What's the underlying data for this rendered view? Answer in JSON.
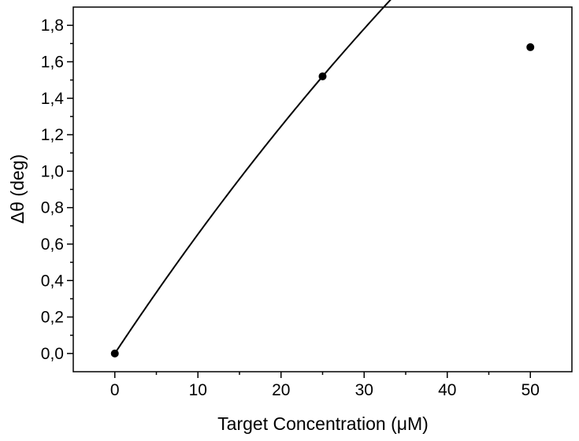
{
  "chart_data": {
    "type": "scatter",
    "title": "",
    "xlabel": "Target Concentration (μM)",
    "ylabel": "Δθ (deg)",
    "xlim": [
      -5,
      55
    ],
    "ylim": [
      -0.1,
      1.9
    ],
    "x_ticks": [
      0,
      10,
      20,
      30,
      40,
      50
    ],
    "x_tick_labels": [
      "0",
      "10",
      "20",
      "30",
      "40",
      "50"
    ],
    "y_ticks": [
      0.0,
      0.2,
      0.4,
      0.6,
      0.8,
      1.0,
      1.2,
      1.4,
      1.6,
      1.8
    ],
    "y_tick_labels": [
      "0,0",
      "0,2",
      "0,4",
      "0,6",
      "0,8",
      "1,0",
      "1,2",
      "1,4",
      "1,6",
      "1,8"
    ],
    "grid": false,
    "series": [
      {
        "x": [
          0,
          25,
          50
        ],
        "y": [
          0.0,
          1.52,
          1.68
        ],
        "marker": "circle",
        "color": "#000000"
      }
    ],
    "fit_curve": {
      "type": "exponential-saturation",
      "color": "#000000"
    }
  }
}
